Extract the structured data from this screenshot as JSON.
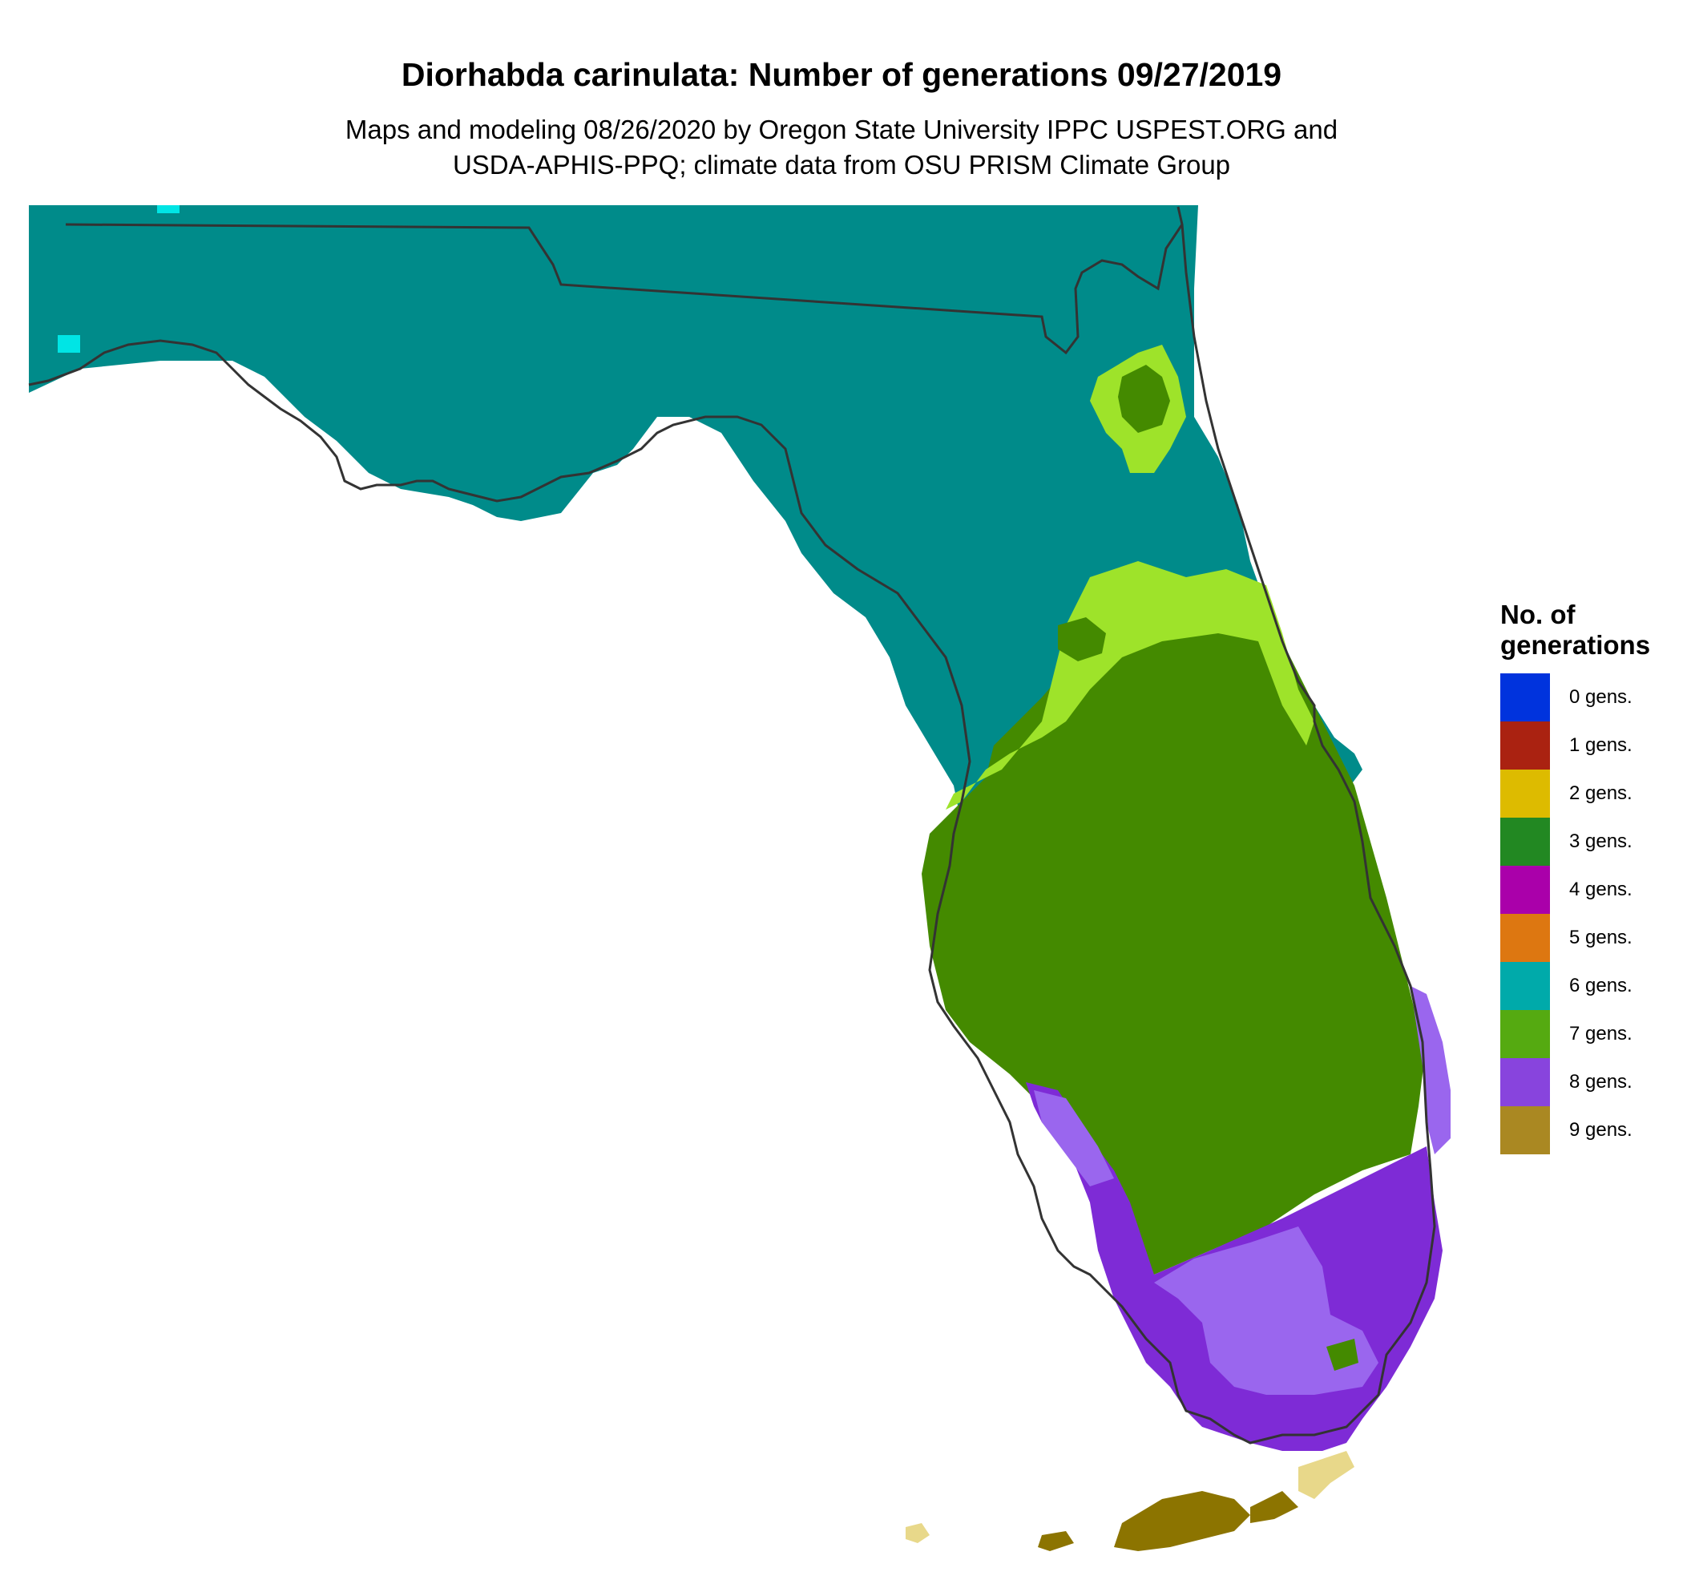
{
  "title": "Diorhabda carinulata: Number of generations 09/27/2019",
  "subtitle_lines": [
    "Maps and modeling 08/26/2020 by Oregon State University IPPC USPEST.ORG and",
    "USDA-APHIS-PPQ; climate data from OSU PRISM Climate Group"
  ],
  "legend": {
    "title_lines": [
      "No. of",
      "generations"
    ],
    "items": [
      {
        "label": "0 gens.",
        "color": "#0033dd"
      },
      {
        "label": "1 gens.",
        "color": "#aa2211"
      },
      {
        "label": "2 gens.",
        "color": "#ddbb00"
      },
      {
        "label": "3 gens.",
        "color": "#228822"
      },
      {
        "label": "4 gens.",
        "color": "#aa00aa"
      },
      {
        "label": "5 gens.",
        "color": "#dd7711"
      },
      {
        "label": "6 gens.",
        "color": "#00aaaa"
      },
      {
        "label": "7 gens.",
        "color": "#55aa11"
      },
      {
        "label": "8 gens.",
        "color": "#8844dd"
      },
      {
        "label": "9 gens.",
        "color": "#aa8822"
      }
    ]
  },
  "map_colors": {
    "north_teal": "#008b8a",
    "light_green": "#9ee32a",
    "dark_green": "#448a00",
    "light_purple": "#9a66ee",
    "dark_purple": "#7e2bd6",
    "keys_olive": "#8c7400",
    "keys_light": "#e8d88a",
    "cyan_spot": "#00e5e5",
    "outline": "#333333"
  }
}
